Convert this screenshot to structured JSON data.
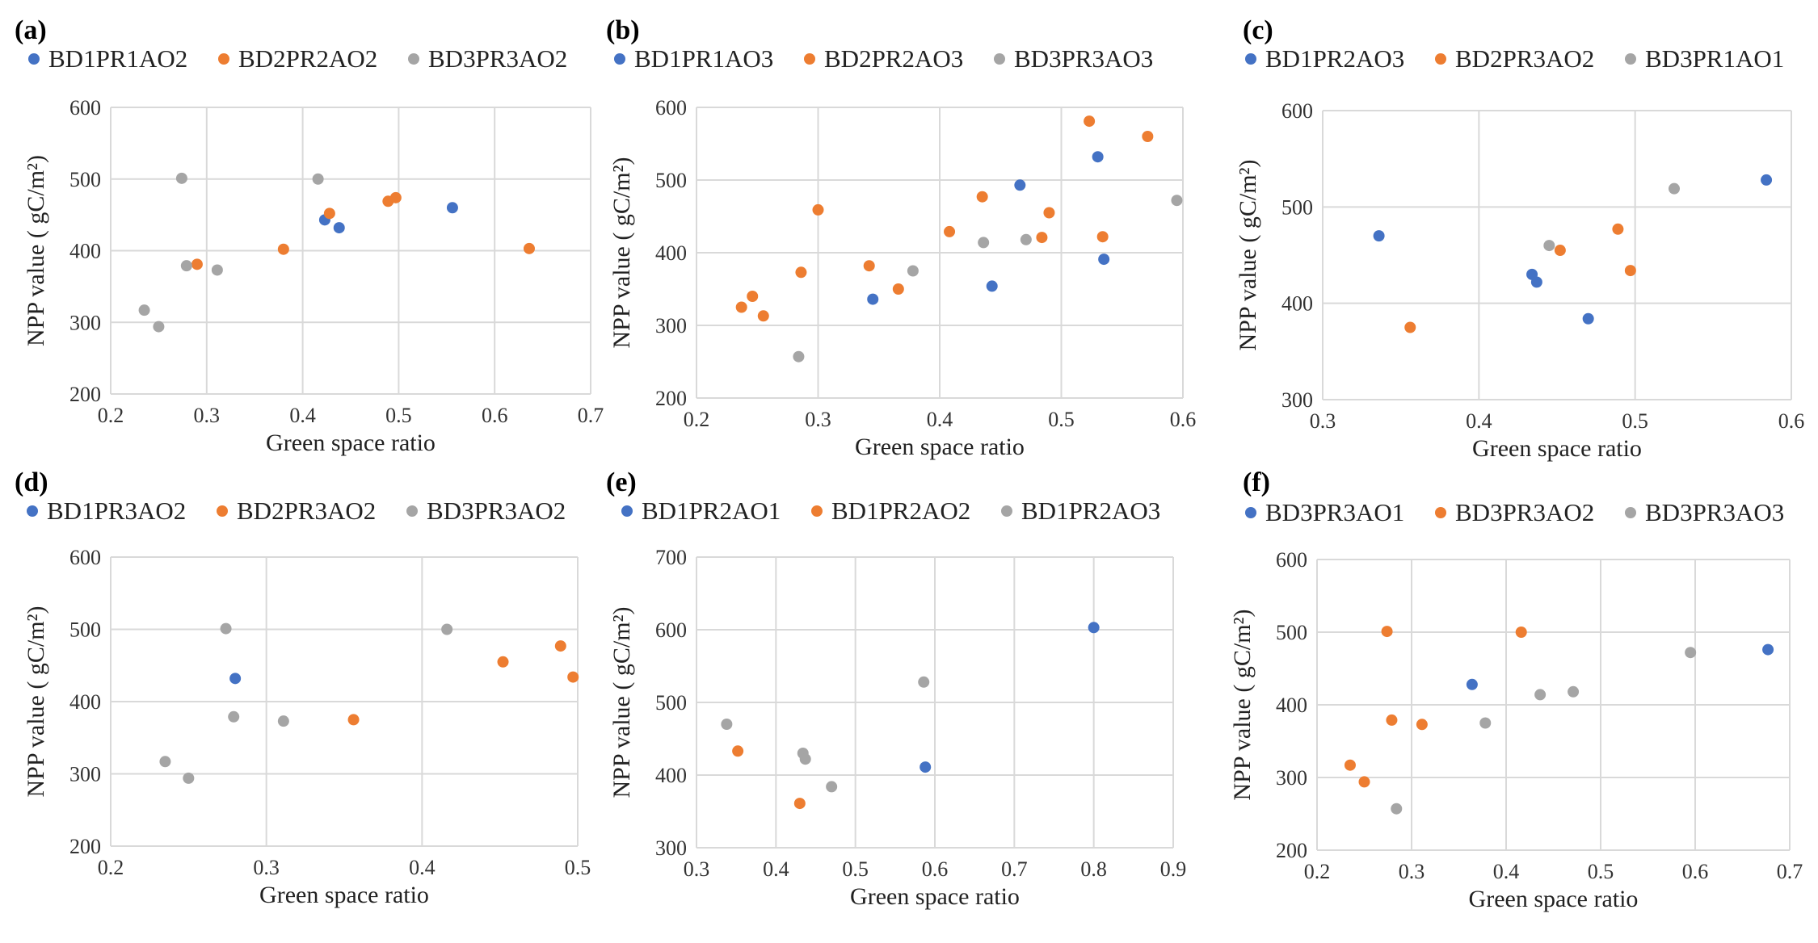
{
  "colors": {
    "s1": "#4472C4",
    "s2": "#ED7D31",
    "s3": "#A5A5A5"
  },
  "chart_data": [
    {
      "type": "scatter",
      "label": "(a)",
      "xlabel": "Green space ratio",
      "ylabel": "NPP value ( gC/m²)",
      "xlim": [
        0.2,
        0.7
      ],
      "ylim": [
        200,
        600
      ],
      "xticks": [
        "0.2",
        "0.3",
        "0.4",
        "0.5",
        "0.6",
        "0.7"
      ],
      "yticks": [
        "200",
        "300",
        "400",
        "500",
        "600"
      ],
      "series": [
        {
          "name": "BD1PR1AO2",
          "points": [
            [
              0.423,
              443
            ],
            [
              0.438,
              432
            ],
            [
              0.556,
              460
            ]
          ]
        },
        {
          "name": "BD2PR2AO2",
          "points": [
            [
              0.29,
              381
            ],
            [
              0.38,
              402
            ],
            [
              0.428,
              452
            ],
            [
              0.489,
              469
            ],
            [
              0.497,
              474
            ],
            [
              0.636,
              403
            ]
          ]
        },
        {
          "name": "BD3PR3AO2",
          "points": [
            [
              0.235,
              317
            ],
            [
              0.25,
              294
            ],
            [
              0.274,
              501
            ],
            [
              0.279,
              379
            ],
            [
              0.311,
              373
            ],
            [
              0.416,
              500
            ]
          ]
        }
      ]
    },
    {
      "type": "scatter",
      "label": "(b)",
      "xlabel": "Green space ratio",
      "ylabel": "NPP value ( gC/m²)",
      "xlim": [
        0.2,
        0.6
      ],
      "ylim": [
        200,
        600
      ],
      "xticks": [
        "0.2",
        "0.3",
        "0.4",
        "0.5",
        "0.6"
      ],
      "yticks": [
        "200",
        "300",
        "400",
        "500",
        "600"
      ],
      "series": [
        {
          "name": "BD1PR1AO3",
          "points": [
            [
              0.345,
              336
            ],
            [
              0.443,
              354
            ],
            [
              0.466,
              493
            ],
            [
              0.53,
              532
            ],
            [
              0.535,
              391
            ]
          ]
        },
        {
          "name": "BD2PR2AO3",
          "points": [
            [
              0.237,
              325
            ],
            [
              0.246,
              340
            ],
            [
              0.255,
              313
            ],
            [
              0.286,
              373
            ],
            [
              0.3,
              459
            ],
            [
              0.342,
              382
            ],
            [
              0.366,
              350
            ],
            [
              0.408,
              429
            ],
            [
              0.435,
              477
            ],
            [
              0.484,
              421
            ],
            [
              0.49,
              455
            ],
            [
              0.523,
              581
            ],
            [
              0.534,
              422
            ],
            [
              0.571,
              560
            ]
          ]
        },
        {
          "name": "BD3PR3AO3",
          "points": [
            [
              0.284,
              257
            ],
            [
              0.378,
              375
            ],
            [
              0.436,
              414
            ],
            [
              0.471,
              418
            ],
            [
              0.595,
              472
            ]
          ]
        }
      ]
    },
    {
      "type": "scatter",
      "label": "(c)",
      "xlabel": "Green space ratio",
      "ylabel": "NPP value ( gC/m²)",
      "xlim": [
        0.3,
        0.6
      ],
      "ylim": [
        300,
        600
      ],
      "xticks": [
        "0.3",
        "0.4",
        "0.5",
        "0.6"
      ],
      "yticks": [
        "300",
        "400",
        "500",
        "600"
      ],
      "series": [
        {
          "name": "BD1PR2AO3",
          "points": [
            [
              0.336,
              470
            ],
            [
              0.434,
              430
            ],
            [
              0.437,
              422
            ],
            [
              0.47,
              384
            ],
            [
              0.584,
              528
            ]
          ]
        },
        {
          "name": "BD2PR3AO2",
          "points": [
            [
              0.356,
              375
            ],
            [
              0.452,
              455
            ],
            [
              0.489,
              477
            ],
            [
              0.497,
              434
            ]
          ]
        },
        {
          "name": "BD3PR1AO1",
          "points": [
            [
              0.445,
              460
            ],
            [
              0.525,
              519
            ]
          ]
        }
      ]
    },
    {
      "type": "scatter",
      "label": "(d)",
      "xlabel": "Green space ratio",
      "ylabel": "NPP value ( gC/m²)",
      "xlim": [
        0.2,
        0.5
      ],
      "ylim": [
        200,
        600
      ],
      "xticks": [
        "0.2",
        "0.3",
        "0.4",
        "0.5"
      ],
      "yticks": [
        "200",
        "300",
        "400",
        "500",
        "600"
      ],
      "series": [
        {
          "name": "BD1PR3AO2",
          "points": [
            [
              0.28,
              432
            ]
          ]
        },
        {
          "name": "BD2PR3AO2",
          "points": [
            [
              0.356,
              375
            ],
            [
              0.452,
              455
            ],
            [
              0.489,
              477
            ],
            [
              0.497,
              434
            ]
          ]
        },
        {
          "name": "BD3PR3AO2",
          "points": [
            [
              0.235,
              317
            ],
            [
              0.25,
              294
            ],
            [
              0.274,
              501
            ],
            [
              0.279,
              379
            ],
            [
              0.311,
              373
            ],
            [
              0.416,
              500
            ]
          ]
        }
      ]
    },
    {
      "type": "scatter",
      "label": "(e)",
      "xlabel": "Green space ratio",
      "ylabel": "NPP value ( gC/m²)",
      "xlim": [
        0.3,
        0.9
      ],
      "ylim": [
        300,
        700
      ],
      "xticks": [
        "0.3",
        "0.4",
        "0.5",
        "0.6",
        "0.7",
        "0.8",
        "0.9"
      ],
      "yticks": [
        "300",
        "400",
        "500",
        "600",
        "700"
      ],
      "series": [
        {
          "name": "BD1PR2AO1",
          "points": [
            [
              0.588,
              411
            ],
            [
              0.8,
              603
            ]
          ]
        },
        {
          "name": "BD1PR2AO2",
          "points": [
            [
              0.352,
              433
            ],
            [
              0.43,
              361
            ]
          ]
        },
        {
          "name": "BD1PR2AO3",
          "points": [
            [
              0.338,
              470
            ],
            [
              0.434,
              430
            ],
            [
              0.437,
              422
            ],
            [
              0.47,
              384
            ],
            [
              0.586,
              528
            ]
          ]
        }
      ]
    },
    {
      "type": "scatter",
      "label": "(f)",
      "xlabel": "Green space ratio",
      "ylabel": "NPP value ( gC/m²)",
      "xlim": [
        0.2,
        0.7
      ],
      "ylim": [
        200,
        600
      ],
      "xticks": [
        "0.2",
        "0.3",
        "0.4",
        "0.5",
        "0.6",
        "0.7"
      ],
      "yticks": [
        "200",
        "300",
        "400",
        "500",
        "600"
      ],
      "series": [
        {
          "name": "BD3PR3AO1",
          "points": [
            [
              0.364,
              428
            ],
            [
              0.677,
              476
            ]
          ]
        },
        {
          "name": "BD3PR3AO2",
          "points": [
            [
              0.235,
              317
            ],
            [
              0.25,
              294
            ],
            [
              0.274,
              501
            ],
            [
              0.279,
              379
            ],
            [
              0.311,
              373
            ],
            [
              0.416,
              500
            ]
          ]
        },
        {
          "name": "BD3PR3AO3",
          "points": [
            [
              0.284,
              257
            ],
            [
              0.378,
              375
            ],
            [
              0.436,
              414
            ],
            [
              0.471,
              418
            ],
            [
              0.595,
              472
            ]
          ]
        }
      ]
    }
  ]
}
